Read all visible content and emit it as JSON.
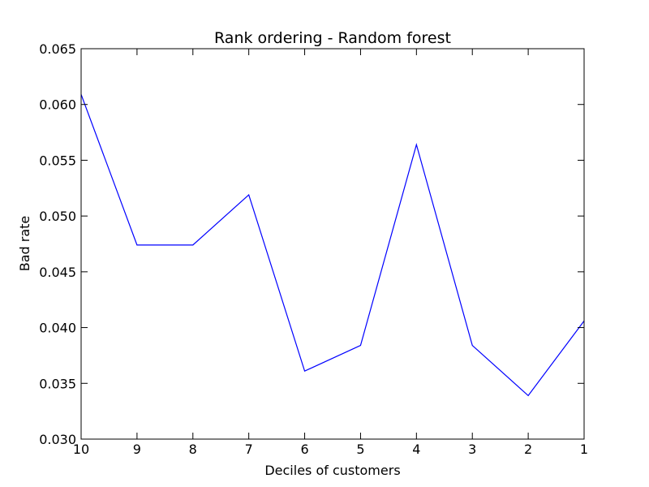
{
  "chart_data": {
    "type": "line",
    "title": "Rank ordering - Random forest",
    "xlabel": "Deciles of customers",
    "ylabel": "Bad rate",
    "x": [
      "10",
      "9",
      "8",
      "7",
      "6",
      "5",
      "4",
      "3",
      "2",
      "1"
    ],
    "series": [
      {
        "color": "#0000ff",
        "values": [
          0.0609,
          0.0474,
          0.0474,
          0.0519,
          0.0361,
          0.0384,
          0.0564,
          0.0384,
          0.0339,
          0.0406
        ]
      }
    ],
    "ylim": [
      0.03,
      0.065
    ],
    "yticks": [
      "0.030",
      "0.035",
      "0.040",
      "0.045",
      "0.050",
      "0.055",
      "0.060",
      "0.065"
    ],
    "grid": false,
    "legend": "none"
  }
}
